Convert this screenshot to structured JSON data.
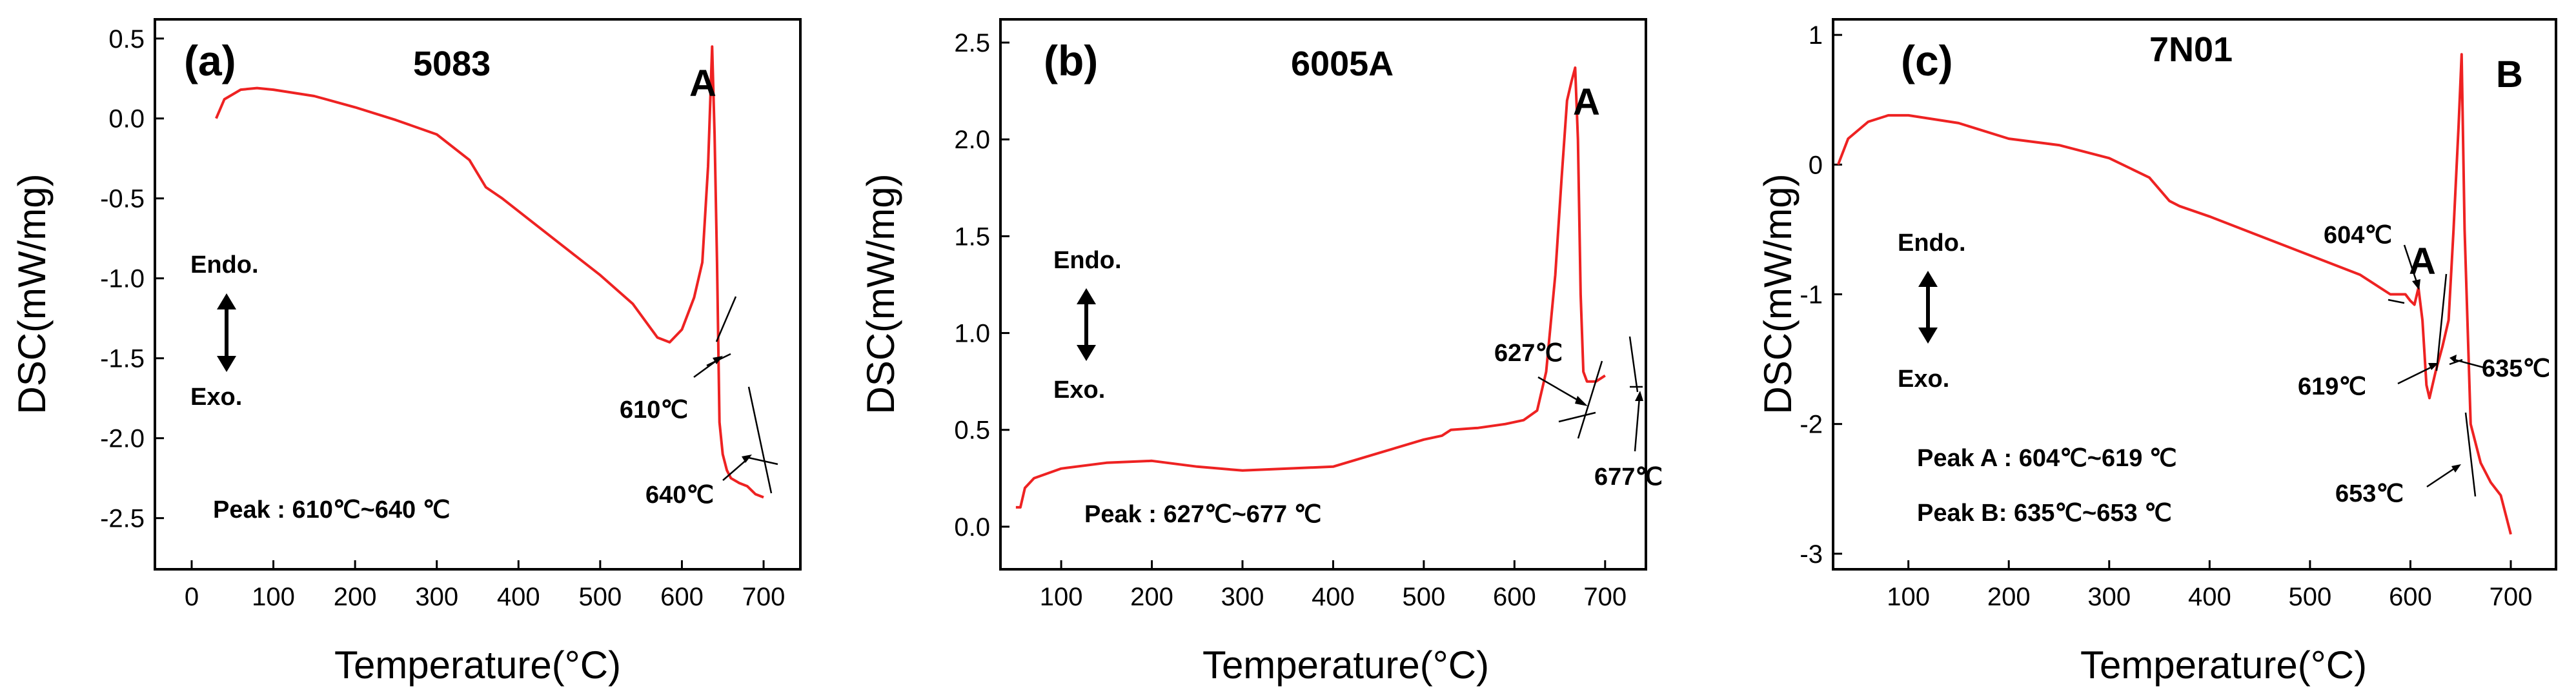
{
  "chart_data": [
    {
      "type": "line",
      "panel_label": "(a)",
      "title": "5083",
      "xlabel": "Temperature(°C)",
      "ylabel": "DSC(mW/mg)",
      "xlim": [
        -45,
        745
      ],
      "ylim": [
        -2.82,
        0.62
      ],
      "xticks": [
        0,
        100,
        200,
        300,
        400,
        500,
        600,
        700
      ],
      "xtick_labels": [
        "0",
        "100",
        "200",
        "300",
        "400",
        "500",
        "600",
        "700"
      ],
      "yticks": [
        0.5,
        0.0,
        -0.5,
        -1.0,
        -1.5,
        -2.0,
        -2.5
      ],
      "ytick_labels": [
        "0.5",
        "0.0",
        "-0.5",
        "-1.0",
        "-1.5",
        "-2.0",
        "-2.5"
      ],
      "series": [
        {
          "name": "DSC",
          "color": "#ee2222",
          "x": [
            30,
            40,
            60,
            80,
            100,
            150,
            200,
            250,
            300,
            340,
            360,
            380,
            420,
            460,
            500,
            540,
            570,
            585,
            600,
            615,
            625,
            632,
            637,
            640,
            643,
            646,
            650,
            655,
            660,
            670,
            680,
            690,
            700
          ],
          "y": [
            0.0,
            0.12,
            0.18,
            0.19,
            0.18,
            0.14,
            0.07,
            -0.01,
            -0.1,
            -0.26,
            -0.43,
            -0.5,
            -0.66,
            -0.82,
            -0.98,
            -1.16,
            -1.37,
            -1.4,
            -1.32,
            -1.12,
            -0.9,
            -0.3,
            0.45,
            -0.1,
            -0.9,
            -1.9,
            -2.1,
            -2.2,
            -2.25,
            -2.28,
            -2.3,
            -2.35,
            -2.37
          ]
        }
      ],
      "peak_letters": [
        "A"
      ],
      "annotations": [
        {
          "text": "610℃",
          "x": 610
        },
        {
          "text": "640℃",
          "x": 640
        }
      ],
      "endo_label": "Endo.",
      "exo_label": "Exo.",
      "peak_texts": [
        "Peak : 610℃~640 ℃"
      ]
    },
    {
      "type": "line",
      "panel_label": "(b)",
      "title": "6005A",
      "xlabel": "Temperature(°C)",
      "ylabel": "DSC(mW/mg)",
      "xlim": [
        33,
        745
      ],
      "ylim": [
        -0.22,
        2.62
      ],
      "xticks": [
        100,
        200,
        300,
        400,
        500,
        600,
        700
      ],
      "xtick_labels": [
        "100",
        "200",
        "300",
        "400",
        "500",
        "600",
        "700"
      ],
      "yticks": [
        2.5,
        2.0,
        1.5,
        1.0,
        0.5,
        0.0
      ],
      "ytick_labels": [
        "2.5",
        "2.0",
        "1.5",
        "1.0",
        "0.5",
        "0.0"
      ],
      "series": [
        {
          "name": "DSC",
          "color": "#ee2222",
          "x": [
            50,
            55,
            60,
            70,
            100,
            150,
            200,
            250,
            300,
            350,
            400,
            450,
            500,
            520,
            530,
            560,
            590,
            610,
            625,
            635,
            645,
            652,
            658,
            663,
            667,
            670,
            673,
            676,
            680,
            690,
            700
          ],
          "y": [
            0.1,
            0.1,
            0.2,
            0.25,
            0.3,
            0.33,
            0.34,
            0.31,
            0.29,
            0.3,
            0.31,
            0.38,
            0.45,
            0.47,
            0.5,
            0.51,
            0.53,
            0.55,
            0.6,
            0.8,
            1.3,
            1.8,
            2.2,
            2.3,
            2.37,
            2.0,
            1.2,
            0.8,
            0.75,
            0.75,
            0.78
          ]
        }
      ],
      "peak_letters": [
        "A"
      ],
      "annotations": [
        {
          "text": "627℃",
          "x": 627
        },
        {
          "text": "677℃",
          "x": 677
        }
      ],
      "endo_label": "Endo.",
      "exo_label": "Exo.",
      "peak_texts": [
        "Peak : 627℃~677 ℃"
      ]
    },
    {
      "type": "line",
      "panel_label": "(c)",
      "title": "7N01",
      "xlabel": "Temperature(°C)",
      "ylabel": "DSC(mW/mg)",
      "xlim": [
        25,
        745
      ],
      "ylim": [
        -3.12,
        1.12
      ],
      "xticks": [
        100,
        200,
        300,
        400,
        500,
        600,
        700
      ],
      "xtick_labels": [
        "100",
        "200",
        "300",
        "400",
        "500",
        "600",
        "700"
      ],
      "yticks": [
        1,
        0,
        -1,
        -2,
        -3
      ],
      "ytick_labels": [
        "1",
        "0",
        "-1",
        "-2",
        "-3"
      ],
      "series": [
        {
          "name": "DSC",
          "color": "#ee2222",
          "x": [
            30,
            40,
            60,
            80,
            100,
            150,
            200,
            250,
            300,
            340,
            360,
            370,
            400,
            450,
            500,
            550,
            580,
            595,
            600,
            604,
            608,
            612,
            616,
            619,
            625,
            632,
            638,
            643,
            648,
            651,
            654,
            660,
            670,
            680,
            690,
            695,
            700
          ],
          "y": [
            0.0,
            0.2,
            0.33,
            0.38,
            0.38,
            0.32,
            0.2,
            0.15,
            0.05,
            -0.1,
            -0.28,
            -0.32,
            -0.4,
            -0.55,
            -0.7,
            -0.85,
            -1.0,
            -1.0,
            -1.05,
            -1.08,
            -0.95,
            -1.2,
            -1.7,
            -1.8,
            -1.6,
            -1.4,
            -1.2,
            -0.5,
            0.3,
            0.85,
            -0.5,
            -2.0,
            -2.3,
            -2.45,
            -2.55,
            -2.7,
            -2.85
          ]
        }
      ],
      "peak_letters": [
        "A",
        "B"
      ],
      "annotations": [
        {
          "text": "604℃",
          "x": 604
        },
        {
          "text": "619℃",
          "x": 619
        },
        {
          "text": "635℃",
          "x": 635
        },
        {
          "text": "653℃",
          "x": 653
        }
      ],
      "endo_label": "Endo.",
      "exo_label": "Exo.",
      "peak_texts": [
        "Peak A : 604℃~619 ℃",
        "Peak B: 635℃~653 ℃"
      ]
    }
  ]
}
